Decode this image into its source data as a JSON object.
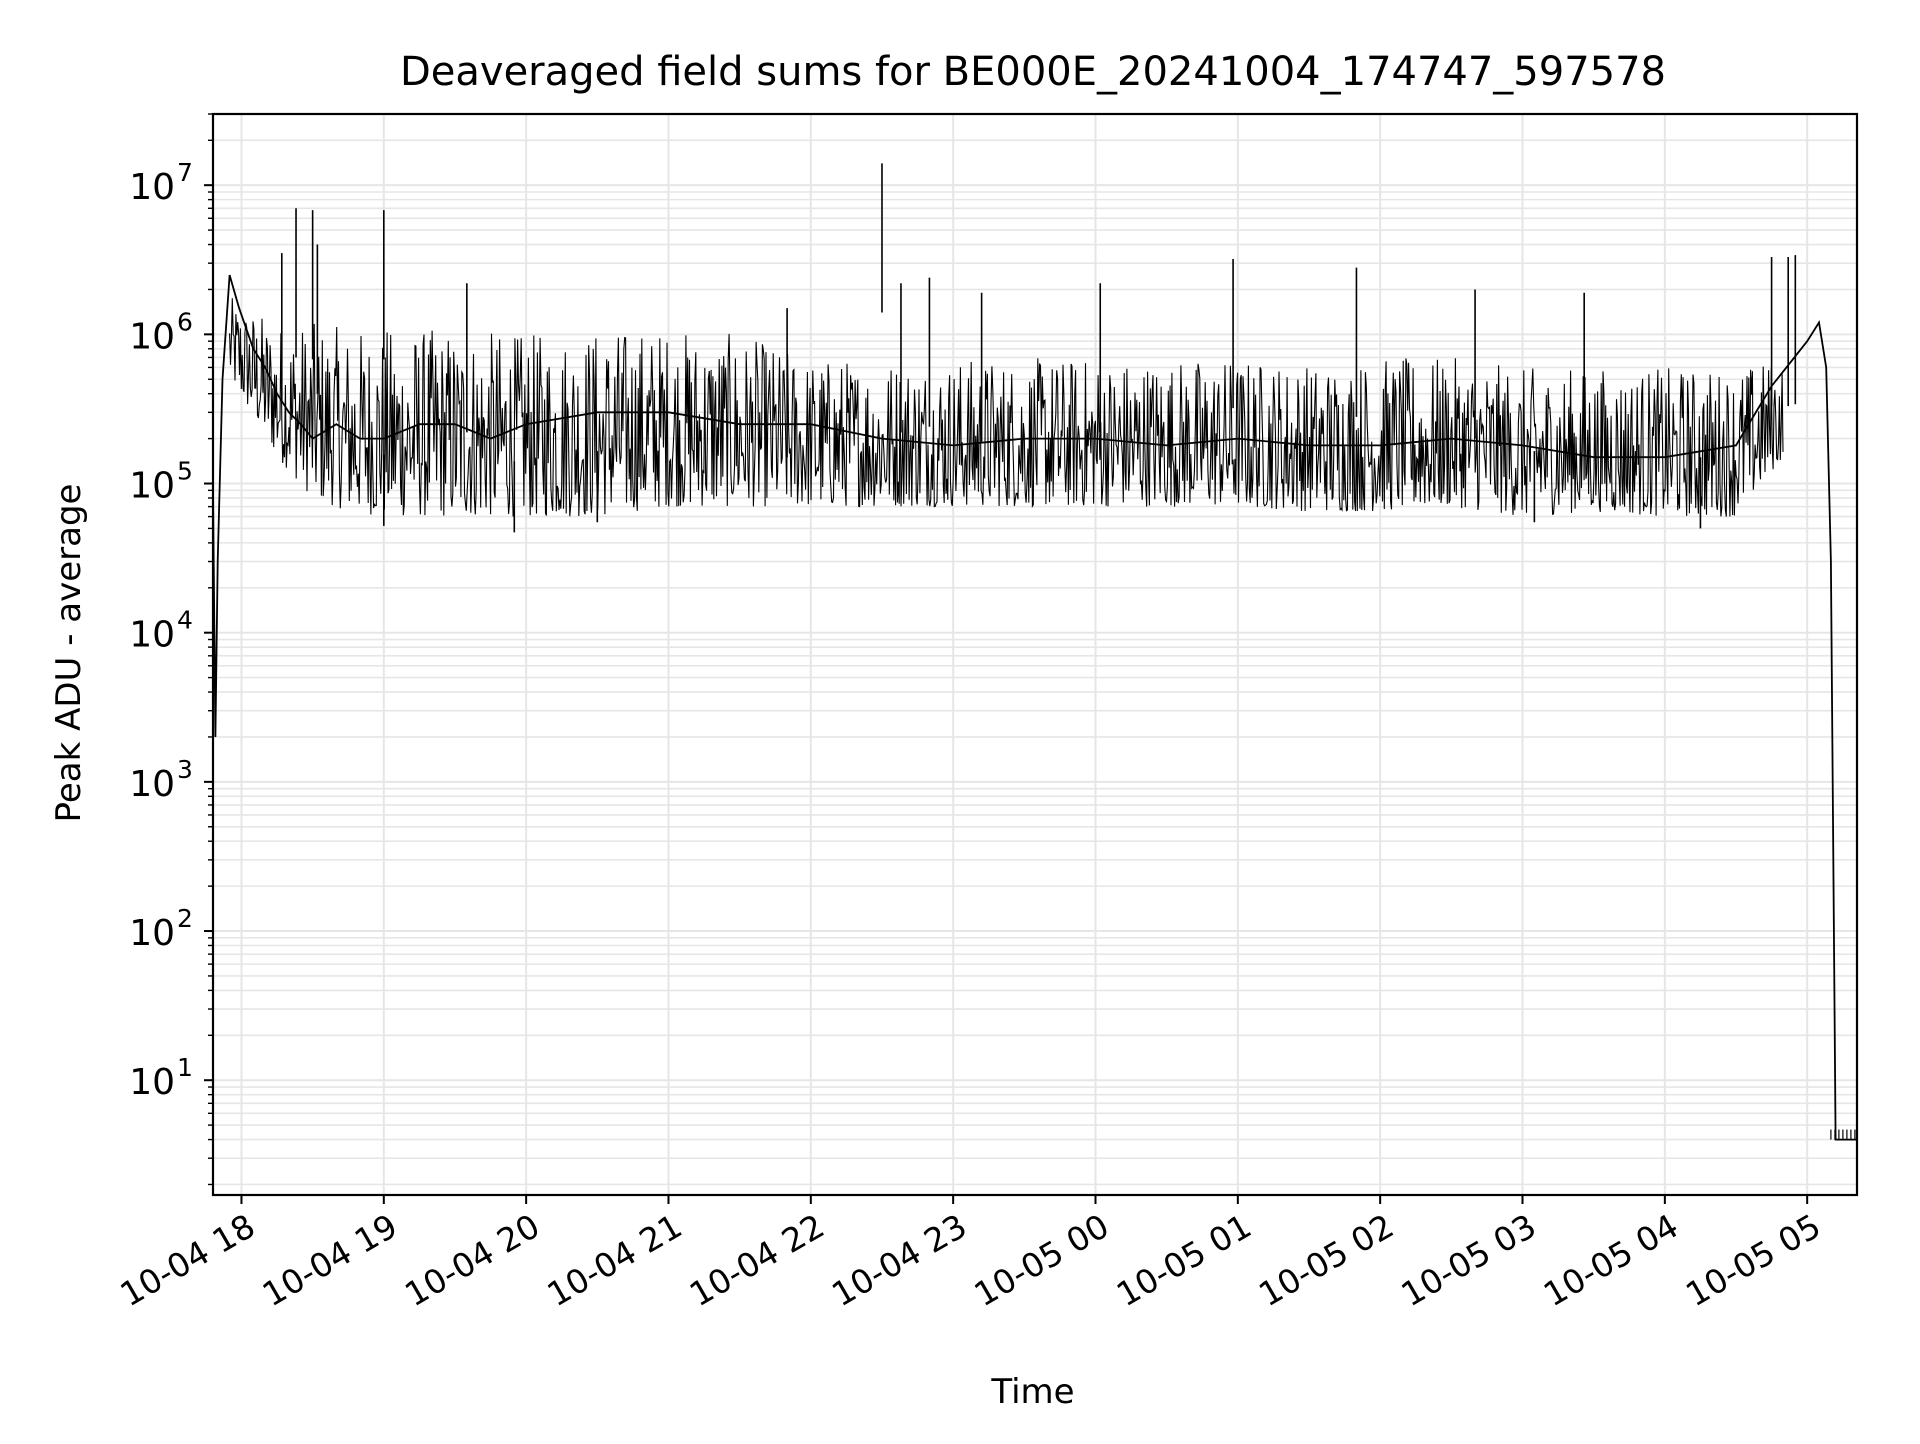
{
  "chart_data": {
    "type": "line",
    "title": "Deaveraged field sums for BE000E_20241004_174747_597578",
    "xlabel": "Time",
    "ylabel": "Peak ADU - average",
    "yscale": "log",
    "ylim": [
      1.7,
      30000000
    ],
    "xlim": [
      "2024-10-04 17:48",
      "2024-10-05 05:21"
    ],
    "grid": true,
    "line_color": "#000000",
    "grid_color": "#e6e6e6",
    "x_ticks": [
      {
        "at": "2024-10-04 18:00",
        "label": "10-04 18"
      },
      {
        "at": "2024-10-04 19:00",
        "label": "10-04 19"
      },
      {
        "at": "2024-10-04 20:00",
        "label": "10-04 20"
      },
      {
        "at": "2024-10-04 21:00",
        "label": "10-04 21"
      },
      {
        "at": "2024-10-04 22:00",
        "label": "10-04 22"
      },
      {
        "at": "2024-10-04 23:00",
        "label": "10-04 23"
      },
      {
        "at": "2024-10-05 00:00",
        "label": "10-05 00"
      },
      {
        "at": "2024-10-05 01:00",
        "label": "10-05 01"
      },
      {
        "at": "2024-10-05 02:00",
        "label": "10-05 02"
      },
      {
        "at": "2024-10-05 03:00",
        "label": "10-05 03"
      },
      {
        "at": "2024-10-05 04:00",
        "label": "10-05 04"
      },
      {
        "at": "2024-10-05 05:00",
        "label": "10-05 05"
      }
    ],
    "y_ticks": [
      {
        "value": 10,
        "base": "10",
        "exp": "1"
      },
      {
        "value": 100,
        "base": "10",
        "exp": "2"
      },
      {
        "value": 1000,
        "base": "10",
        "exp": "3"
      },
      {
        "value": 10000,
        "base": "10",
        "exp": "4"
      },
      {
        "value": 100000,
        "base": "10",
        "exp": "5"
      },
      {
        "value": 1000000,
        "base": "10",
        "exp": "6"
      },
      {
        "value": 10000000,
        "base": "10",
        "exp": "7"
      }
    ],
    "x": [
      "2024-10-04 17:48",
      "2024-10-04 17:49",
      "2024-10-04 17:50",
      "2024-10-04 17:52",
      "2024-10-04 17:55",
      "2024-10-04 17:59",
      "2024-10-04 18:05",
      "2024-10-04 18:10",
      "2024-10-04 18:15",
      "2024-10-04 18:20",
      "2024-10-04 18:25",
      "2024-10-04 18:30",
      "2024-10-04 18:40",
      "2024-10-04 18:50",
      "2024-10-04 19:00",
      "2024-10-04 19:15",
      "2024-10-04 19:30",
      "2024-10-04 19:45",
      "2024-10-04 20:00",
      "2024-10-04 20:30",
      "2024-10-04 21:00",
      "2024-10-04 21:30",
      "2024-10-04 22:00",
      "2024-10-04 22:30",
      "2024-10-04 23:00",
      "2024-10-04 23:30",
      "2024-10-05 00:00",
      "2024-10-05 00:30",
      "2024-10-05 01:00",
      "2024-10-05 01:30",
      "2024-10-05 02:00",
      "2024-10-05 02:30",
      "2024-10-05 03:00",
      "2024-10-05 03:30",
      "2024-10-05 04:00",
      "2024-10-05 04:30",
      "2024-10-05 04:45",
      "2024-10-05 05:00",
      "2024-10-05 05:05",
      "2024-10-05 05:08",
      "2024-10-05 05:10",
      "2024-10-05 05:12",
      "2024-10-05 05:15",
      "2024-10-05 05:21"
    ],
    "y": [
      90000,
      2000,
      30000,
      500000,
      2500000,
      1500000,
      800000,
      600000,
      400000,
      300000,
      250000,
      200000,
      250000,
      200000,
      200000,
      250000,
      250000,
      200000,
      250000,
      300000,
      300000,
      250000,
      250000,
      200000,
      180000,
      200000,
      200000,
      180000,
      200000,
      180000,
      180000,
      200000,
      180000,
      150000,
      150000,
      180000,
      450000,
      900000,
      1200000,
      600000,
      30000,
      4,
      4,
      4
    ],
    "band": {
      "x": [
        "2024-10-04 17:55",
        "2024-10-04 18:15",
        "2024-10-04 18:30",
        "2024-10-04 18:45",
        "2024-10-04 19:00",
        "2024-10-04 19:30",
        "2024-10-04 20:00",
        "2024-10-04 20:30",
        "2024-10-04 21:00",
        "2024-10-04 21:30",
        "2024-10-04 22:00",
        "2024-10-04 22:30",
        "2024-10-04 23:00",
        "2024-10-04 23:30",
        "2024-10-05 00:00",
        "2024-10-05 00:30",
        "2024-10-05 01:00",
        "2024-10-05 01:30",
        "2024-10-05 02:00",
        "2024-10-05 02:30",
        "2024-10-05 03:00",
        "2024-10-05 03:30",
        "2024-10-05 04:00",
        "2024-10-05 04:30",
        "2024-10-05 04:50"
      ],
      "high": [
        1800000,
        1200000,
        1200000,
        1100000,
        1100000,
        1100000,
        1000000,
        1100000,
        1100000,
        1000000,
        700000,
        700000,
        700000,
        700000,
        700000,
        700000,
        700000,
        650000,
        700000,
        700000,
        600000,
        600000,
        600000,
        600000,
        700000
      ],
      "low": [
        500000,
        150000,
        80000,
        65000,
        60000,
        60000,
        60000,
        60000,
        70000,
        70000,
        70000,
        70000,
        70000,
        70000,
        70000,
        70000,
        70000,
        65000,
        65000,
        70000,
        60000,
        65000,
        60000,
        60000,
        150000
      ]
    },
    "spikes": [
      {
        "x": "2024-10-04 18:17",
        "y": 3500000
      },
      {
        "x": "2024-10-04 18:23",
        "y": 7000000
      },
      {
        "x": "2024-10-04 18:30",
        "y": 6800000
      },
      {
        "x": "2024-10-04 18:32",
        "y": 4000000
      },
      {
        "x": "2024-10-04 19:00",
        "y": 6800000
      },
      {
        "x": "2024-10-04 19:35",
        "y": 2200000
      },
      {
        "x": "2024-10-04 21:50",
        "y": 1500000
      },
      {
        "x": "2024-10-04 22:30",
        "y": 14000000
      },
      {
        "x": "2024-10-04 22:38",
        "y": 2200000
      },
      {
        "x": "2024-10-04 22:50",
        "y": 2400000
      },
      {
        "x": "2024-10-04 23:12",
        "y": 1900000
      },
      {
        "x": "2024-10-05 00:02",
        "y": 2200000
      },
      {
        "x": "2024-10-05 00:58",
        "y": 3200000
      },
      {
        "x": "2024-10-05 01:50",
        "y": 2800000
      },
      {
        "x": "2024-10-05 02:40",
        "y": 2000000
      },
      {
        "x": "2024-10-05 03:26",
        "y": 1900000
      },
      {
        "x": "2024-10-05 04:45",
        "y": 3300000
      },
      {
        "x": "2024-10-05 04:52",
        "y": 3300000
      },
      {
        "x": "2024-10-05 04:55",
        "y": 3400000
      }
    ],
    "troughs": [
      {
        "x": "2024-10-04 19:00",
        "y": 52000
      },
      {
        "x": "2024-10-04 19:55",
        "y": 47000
      },
      {
        "x": "2024-10-04 20:30",
        "y": 55000
      },
      {
        "x": "2024-10-05 03:05",
        "y": 55000
      },
      {
        "x": "2024-10-05 04:15",
        "y": 50000
      }
    ]
  }
}
